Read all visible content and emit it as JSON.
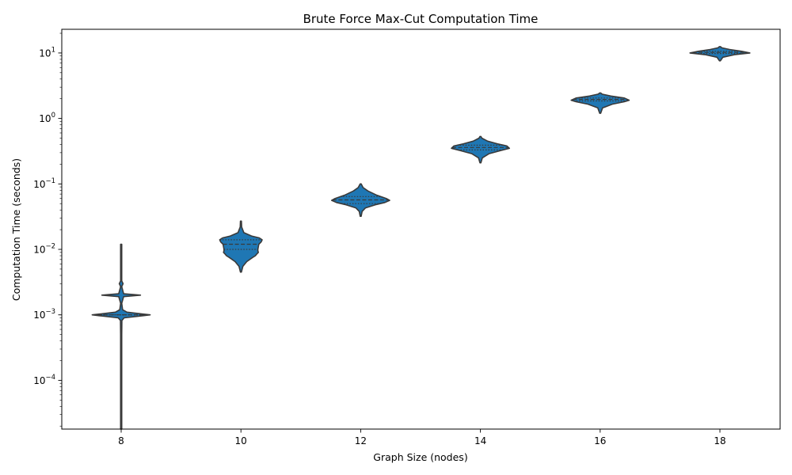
{
  "chart_data": {
    "type": "violin",
    "title": "Brute Force Max-Cut Computation Time",
    "xlabel": "Graph Size (nodes)",
    "ylabel": "Computation Time (seconds)",
    "yscale": "log",
    "ylim": [
      1.8e-05,
      23
    ],
    "grid": false,
    "color": "#1f77b4",
    "edge_color": "#3a3a3a",
    "categories": [
      "8",
      "10",
      "12",
      "14",
      "16",
      "18"
    ],
    "yticks": [
      {
        "value": 0.0001,
        "base": "10",
        "exp": "−4"
      },
      {
        "value": 0.001,
        "base": "10",
        "exp": "−3"
      },
      {
        "value": 0.01,
        "base": "10",
        "exp": "−2"
      },
      {
        "value": 0.1,
        "base": "10",
        "exp": "−1"
      },
      {
        "value": 1,
        "base": "10",
        "exp": "0"
      },
      {
        "value": 10,
        "base": "10",
        "exp": "1"
      }
    ],
    "violins": [
      {
        "category": "8",
        "profile": [
          [
            1.8e-05,
            0.012
          ],
          [
            5e-05,
            0.012
          ],
          [
            0.0002,
            0.012
          ],
          [
            0.0005,
            0.012
          ],
          [
            0.00082,
            0.015
          ],
          [
            0.0009,
            0.06
          ],
          [
            0.00097,
            0.45
          ],
          [
            0.001,
            0.6
          ],
          [
            0.00103,
            0.45
          ],
          [
            0.0011,
            0.12
          ],
          [
            0.0012,
            0.03
          ],
          [
            0.0015,
            0.012
          ],
          [
            0.0019,
            0.05
          ],
          [
            0.002,
            0.4
          ],
          [
            0.0021,
            0.05
          ],
          [
            0.0027,
            0.012
          ],
          [
            0.003,
            0.04
          ],
          [
            0.0033,
            0.012
          ],
          [
            0.012,
            0.012
          ]
        ],
        "quartiles": [
          0.001,
          0.001,
          0.001
        ]
      },
      {
        "category": "10",
        "profile": [
          [
            0.0045,
            0.01
          ],
          [
            0.0055,
            0.04
          ],
          [
            0.0065,
            0.12
          ],
          [
            0.0075,
            0.24
          ],
          [
            0.008,
            0.3
          ],
          [
            0.0085,
            0.33
          ],
          [
            0.009,
            0.36
          ],
          [
            0.0095,
            0.35
          ],
          [
            0.01,
            0.35
          ],
          [
            0.011,
            0.36
          ],
          [
            0.012,
            0.37
          ],
          [
            0.013,
            0.42
          ],
          [
            0.014,
            0.44
          ],
          [
            0.015,
            0.38
          ],
          [
            0.016,
            0.22
          ],
          [
            0.018,
            0.06
          ],
          [
            0.022,
            0.015
          ],
          [
            0.027,
            0.01
          ]
        ],
        "quartiles": [
          0.01,
          0.012,
          0.014
        ]
      },
      {
        "category": "12",
        "profile": [
          [
            0.032,
            0.01
          ],
          [
            0.038,
            0.03
          ],
          [
            0.043,
            0.1
          ],
          [
            0.048,
            0.3
          ],
          [
            0.052,
            0.5
          ],
          [
            0.056,
            0.6
          ],
          [
            0.06,
            0.53
          ],
          [
            0.068,
            0.32
          ],
          [
            0.078,
            0.15
          ],
          [
            0.088,
            0.05
          ],
          [
            0.1,
            0.01
          ]
        ],
        "quartiles": [
          0.05,
          0.057,
          0.064
        ]
      },
      {
        "category": "14",
        "profile": [
          [
            0.21,
            0.01
          ],
          [
            0.25,
            0.04
          ],
          [
            0.29,
            0.18
          ],
          [
            0.32,
            0.4
          ],
          [
            0.35,
            0.6
          ],
          [
            0.38,
            0.55
          ],
          [
            0.41,
            0.35
          ],
          [
            0.45,
            0.15
          ],
          [
            0.5,
            0.03
          ],
          [
            0.53,
            0.01
          ]
        ],
        "quartiles": [
          0.33,
          0.36,
          0.39
        ]
      },
      {
        "category": "16",
        "profile": [
          [
            1.2,
            0.01
          ],
          [
            1.45,
            0.05
          ],
          [
            1.65,
            0.25
          ],
          [
            1.8,
            0.5
          ],
          [
            1.9,
            0.6
          ],
          [
            2.05,
            0.5
          ],
          [
            2.2,
            0.22
          ],
          [
            2.35,
            0.04
          ],
          [
            2.45,
            0.01
          ]
        ],
        "quartiles": [
          1.85,
          1.95,
          2.05
        ]
      },
      {
        "category": "18",
        "profile": [
          [
            7.6,
            0.01
          ],
          [
            8.6,
            0.06
          ],
          [
            9.4,
            0.3
          ],
          [
            10.0,
            0.62
          ],
          [
            10.6,
            0.45
          ],
          [
            11.3,
            0.2
          ],
          [
            12.0,
            0.04
          ],
          [
            12.5,
            0.01
          ]
        ],
        "quartiles": [
          9.8,
          10.2,
          10.6
        ]
      }
    ]
  }
}
